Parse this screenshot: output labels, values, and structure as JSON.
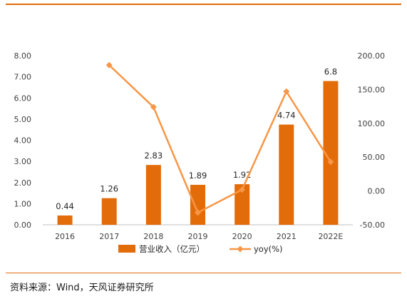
{
  "chart_data": {
    "type": "bar",
    "categories": [
      "2016",
      "2017",
      "2018",
      "2019",
      "2020",
      "2021",
      "2022E"
    ],
    "series": [
      {
        "name": "营业收入（亿元）",
        "type": "bar",
        "axis": "left",
        "values": [
          0.44,
          1.26,
          2.83,
          1.89,
          1.92,
          4.74,
          6.8
        ],
        "labels": [
          "0.44",
          "1.26",
          "2.83",
          "1.89",
          "1.92",
          "4.74",
          "6.8"
        ]
      },
      {
        "name": "yoy(%)",
        "type": "line",
        "axis": "right",
        "values": [
          null,
          186,
          124,
          -32,
          2,
          147,
          43
        ]
      }
    ],
    "left_axis": {
      "ticks": [
        "0.00",
        "1.00",
        "2.00",
        "3.00",
        "4.00",
        "5.00",
        "6.00",
        "7.00",
        "8.00"
      ],
      "ylim": [
        0,
        8
      ]
    },
    "right_axis": {
      "ticks": [
        "-50.00",
        "0.00",
        "50.00",
        "100.00",
        "150.00",
        "200.00"
      ],
      "ylim": [
        -50,
        200
      ]
    },
    "colors": {
      "bar": "#E36C0A",
      "line": "#F79646",
      "right_min_tick": "#C00000"
    },
    "grid": false,
    "legend_position": "bottom"
  },
  "source": "资料来源：Wind，天风证券研究所"
}
